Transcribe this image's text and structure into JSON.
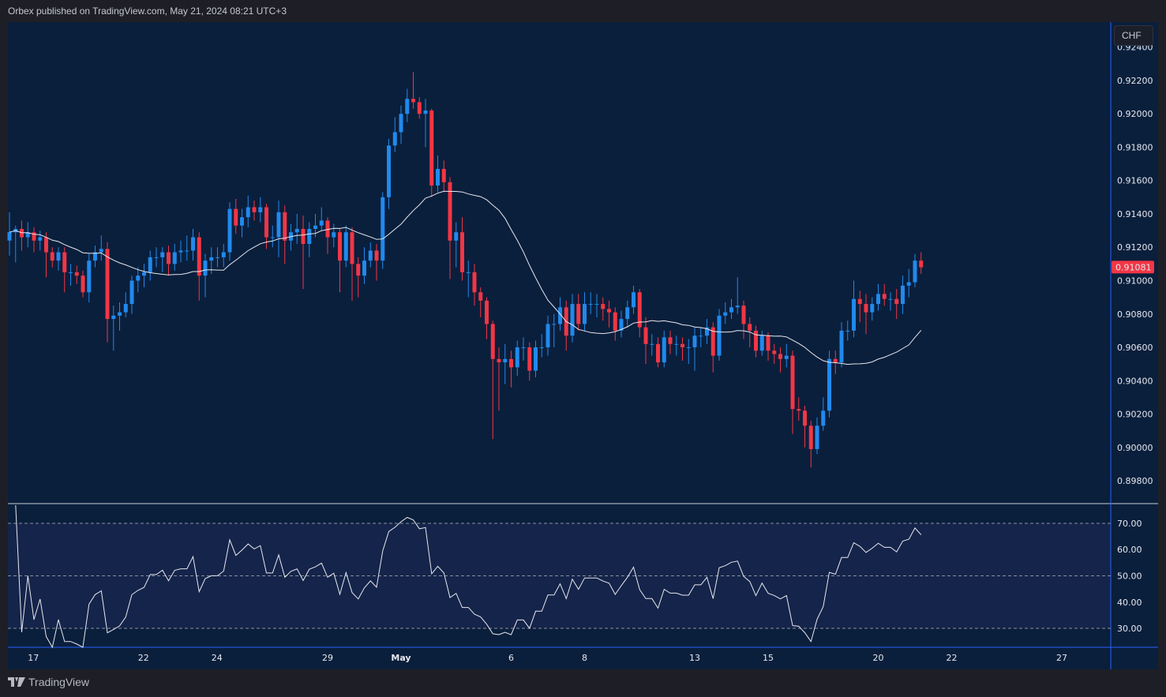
{
  "header": {
    "published": "Orbex published on TradingView.com, May 21, 2024 08:21 UTC+3"
  },
  "currency_button": "CHF",
  "footer": {
    "logo_text": "TradingView"
  },
  "colors": {
    "up": "#2189ec",
    "down": "#f23645",
    "ma": "#e6e8ee",
    "rsi": "#e6e8ee",
    "background": "#0a1f3c",
    "rsi_band": "#15244a",
    "last_price_bg": "#f23645"
  },
  "chart_data": [
    {
      "type": "candlestick",
      "symbol_quote": "CHF",
      "last_price_label": "0.91081",
      "ylim": [
        0.89663,
        0.9255
      ],
      "xlim_bars": [
        -0.26,
        180
      ],
      "yticks": [
        "0.92400",
        "0.92200",
        "0.92000",
        "0.91800",
        "0.91600",
        "0.91400",
        "0.91200",
        "0.91000",
        "0.90800",
        "0.90600",
        "0.90400",
        "0.90200",
        "0.90000",
        "0.89800"
      ],
      "xticks": [
        {
          "label": "17",
          "bar": 3.9
        },
        {
          "label": "22",
          "bar": 21.9
        },
        {
          "label": "24",
          "bar": 33.9
        },
        {
          "label": "29",
          "bar": 52
        },
        {
          "label": "May",
          "bar": 64
        },
        {
          "label": "6",
          "bar": 82
        },
        {
          "label": "8",
          "bar": 94
        },
        {
          "label": "13",
          "bar": 112
        },
        {
          "label": "15",
          "bar": 124
        },
        {
          "label": "20",
          "bar": 142
        },
        {
          "label": "22",
          "bar": 154
        },
        {
          "label": "27",
          "bar": 172
        }
      ],
      "moving_average_period": 20,
      "ohlc": [
        [
          0.9124,
          0.9141,
          0.9115,
          0.9129
        ],
        [
          0.9129,
          0.9133,
          0.9111,
          0.9131
        ],
        [
          0.9131,
          0.9136,
          0.9118,
          0.9126
        ],
        [
          0.9126,
          0.9135,
          0.912,
          0.9129
        ],
        [
          0.9129,
          0.9132,
          0.9117,
          0.9124
        ],
        [
          0.9124,
          0.913,
          0.9118,
          0.9126
        ],
        [
          0.9126,
          0.9129,
          0.9102,
          0.9117
        ],
        [
          0.9117,
          0.912,
          0.9108,
          0.9112
        ],
        [
          0.9112,
          0.912,
          0.9106,
          0.9117
        ],
        [
          0.9117,
          0.912,
          0.9093,
          0.9105
        ],
        [
          0.9105,
          0.911,
          0.9097,
          0.9105
        ],
        [
          0.9105,
          0.9109,
          0.9098,
          0.9103
        ],
        [
          0.9103,
          0.9106,
          0.909,
          0.9093
        ],
        [
          0.9093,
          0.9116,
          0.9087,
          0.9112
        ],
        [
          0.9112,
          0.9121,
          0.9108,
          0.9117
        ],
        [
          0.9117,
          0.9127,
          0.9112,
          0.9119
        ],
        [
          0.9119,
          0.9123,
          0.9063,
          0.9077
        ],
        [
          0.9077,
          0.9085,
          0.9058,
          0.9079
        ],
        [
          0.9079,
          0.9087,
          0.907,
          0.9081
        ],
        [
          0.9081,
          0.9093,
          0.9078,
          0.9086
        ],
        [
          0.9086,
          0.9103,
          0.908,
          0.91
        ],
        [
          0.91,
          0.9108,
          0.9093,
          0.9103
        ],
        [
          0.9103,
          0.911,
          0.9096,
          0.9105
        ],
        [
          0.9105,
          0.9118,
          0.91,
          0.9114
        ],
        [
          0.9114,
          0.912,
          0.9108,
          0.9114
        ],
        [
          0.9114,
          0.912,
          0.9105,
          0.9117
        ],
        [
          0.9117,
          0.9121,
          0.9103,
          0.911
        ],
        [
          0.911,
          0.9122,
          0.9106,
          0.9117
        ],
        [
          0.9117,
          0.9124,
          0.9111,
          0.9118
        ],
        [
          0.9118,
          0.9127,
          0.9112,
          0.9118
        ],
        [
          0.9118,
          0.9131,
          0.9112,
          0.9126
        ],
        [
          0.9126,
          0.9129,
          0.9088,
          0.9103
        ],
        [
          0.9103,
          0.9116,
          0.909,
          0.9112
        ],
        [
          0.9112,
          0.912,
          0.9104,
          0.9114
        ],
        [
          0.9114,
          0.912,
          0.9108,
          0.9114
        ],
        [
          0.9114,
          0.9122,
          0.9108,
          0.9117
        ],
        [
          0.9117,
          0.9147,
          0.9112,
          0.9143
        ],
        [
          0.9143,
          0.9149,
          0.9128,
          0.9133
        ],
        [
          0.9133,
          0.9143,
          0.9126,
          0.9138
        ],
        [
          0.9138,
          0.9151,
          0.9132,
          0.9144
        ],
        [
          0.9144,
          0.9148,
          0.9136,
          0.9141
        ],
        [
          0.9141,
          0.915,
          0.9135,
          0.9144
        ],
        [
          0.9144,
          0.9146,
          0.9119,
          0.9126
        ],
        [
          0.9126,
          0.9133,
          0.912,
          0.9126
        ],
        [
          0.9126,
          0.9148,
          0.9114,
          0.9141
        ],
        [
          0.9141,
          0.9145,
          0.911,
          0.9124
        ],
        [
          0.9124,
          0.9134,
          0.9118,
          0.9129
        ],
        [
          0.9129,
          0.914,
          0.9122,
          0.9131
        ],
        [
          0.9131,
          0.9139,
          0.9095,
          0.9122
        ],
        [
          0.9122,
          0.9135,
          0.9114,
          0.9131
        ],
        [
          0.9131,
          0.914,
          0.9126,
          0.9133
        ],
        [
          0.9133,
          0.9144,
          0.913,
          0.9136
        ],
        [
          0.9136,
          0.9138,
          0.9116,
          0.9126
        ],
        [
          0.9126,
          0.9134,
          0.912,
          0.9129
        ],
        [
          0.9129,
          0.9131,
          0.9093,
          0.9112
        ],
        [
          0.9112,
          0.9133,
          0.9108,
          0.9129
        ],
        [
          0.9129,
          0.9132,
          0.9088,
          0.911
        ],
        [
          0.911,
          0.9114,
          0.909,
          0.9103
        ],
        [
          0.9103,
          0.912,
          0.9098,
          0.9112
        ],
        [
          0.9112,
          0.9123,
          0.9108,
          0.9118
        ],
        [
          0.9118,
          0.9122,
          0.91,
          0.9112
        ],
        [
          0.9112,
          0.9153,
          0.9107,
          0.915
        ],
        [
          0.915,
          0.9185,
          0.9143,
          0.9181
        ],
        [
          0.9181,
          0.9198,
          0.9177,
          0.9189
        ],
        [
          0.9189,
          0.9205,
          0.9182,
          0.92
        ],
        [
          0.92,
          0.9215,
          0.9195,
          0.9209
        ],
        [
          0.9209,
          0.9225,
          0.9203,
          0.9207
        ],
        [
          0.9207,
          0.921,
          0.9197,
          0.92
        ],
        [
          0.92,
          0.9209,
          0.918,
          0.9202
        ],
        [
          0.9202,
          0.9203,
          0.915,
          0.9157
        ],
        [
          0.9157,
          0.9175,
          0.9153,
          0.9167
        ],
        [
          0.9167,
          0.9172,
          0.9153,
          0.9159
        ],
        [
          0.9159,
          0.9162,
          0.9101,
          0.9124
        ],
        [
          0.9124,
          0.9135,
          0.9108,
          0.9129
        ],
        [
          0.9129,
          0.9138,
          0.91,
          0.9105
        ],
        [
          0.9105,
          0.9112,
          0.909,
          0.9105
        ],
        [
          0.9105,
          0.911,
          0.9085,
          0.9093
        ],
        [
          0.9093,
          0.9096,
          0.9078,
          0.9088
        ],
        [
          0.9088,
          0.909,
          0.9065,
          0.9074
        ],
        [
          0.9074,
          0.9076,
          0.9005,
          0.9053
        ],
        [
          0.9053,
          0.906,
          0.9022,
          0.9051
        ],
        [
          0.9051,
          0.9062,
          0.9038,
          0.9053
        ],
        [
          0.9053,
          0.9058,
          0.9036,
          0.9048
        ],
        [
          0.9048,
          0.9064,
          0.9043,
          0.906
        ],
        [
          0.906,
          0.9066,
          0.9052,
          0.906
        ],
        [
          0.906,
          0.9063,
          0.904,
          0.9046
        ],
        [
          0.9046,
          0.9064,
          0.9042,
          0.906
        ],
        [
          0.906,
          0.9068,
          0.9054,
          0.906
        ],
        [
          0.906,
          0.9079,
          0.9055,
          0.9074
        ],
        [
          0.9074,
          0.908,
          0.906,
          0.9074
        ],
        [
          0.9074,
          0.909,
          0.907,
          0.9084
        ],
        [
          0.9084,
          0.9088,
          0.9058,
          0.9067
        ],
        [
          0.9067,
          0.9092,
          0.9063,
          0.9086
        ],
        [
          0.9086,
          0.9092,
          0.907,
          0.9074
        ],
        [
          0.9074,
          0.9093,
          0.907,
          0.9086
        ],
        [
          0.9086,
          0.9093,
          0.908,
          0.9086
        ],
        [
          0.9086,
          0.9092,
          0.9078,
          0.9086
        ],
        [
          0.9086,
          0.909,
          0.9076,
          0.9083
        ],
        [
          0.9083,
          0.9088,
          0.9072,
          0.9081
        ],
        [
          0.9081,
          0.9084,
          0.9064,
          0.907
        ],
        [
          0.907,
          0.9082,
          0.9066,
          0.9077
        ],
        [
          0.9077,
          0.9088,
          0.9072,
          0.9084
        ],
        [
          0.9084,
          0.9097,
          0.908,
          0.9093
        ],
        [
          0.9093,
          0.9095,
          0.9066,
          0.9072
        ],
        [
          0.9072,
          0.9078,
          0.905,
          0.9062
        ],
        [
          0.9062,
          0.9068,
          0.9055,
          0.9062
        ],
        [
          0.9062,
          0.9066,
          0.9048,
          0.9051
        ],
        [
          0.9051,
          0.907,
          0.9048,
          0.9066
        ],
        [
          0.9066,
          0.907,
          0.9056,
          0.9062
        ],
        [
          0.9062,
          0.9067,
          0.9055,
          0.9062
        ],
        [
          0.9062,
          0.9066,
          0.9052,
          0.906
        ],
        [
          0.906,
          0.9065,
          0.905,
          0.906
        ],
        [
          0.906,
          0.9072,
          0.9046,
          0.9067
        ],
        [
          0.9067,
          0.9072,
          0.906,
          0.9067
        ],
        [
          0.9067,
          0.9077,
          0.9062,
          0.9072
        ],
        [
          0.9072,
          0.9075,
          0.9045,
          0.9055
        ],
        [
          0.9055,
          0.9083,
          0.9052,
          0.9079
        ],
        [
          0.9079,
          0.9087,
          0.9074,
          0.9081
        ],
        [
          0.9081,
          0.9089,
          0.9077,
          0.9084
        ],
        [
          0.9084,
          0.9102,
          0.908,
          0.9085
        ],
        [
          0.9085,
          0.9088,
          0.9065,
          0.9074
        ],
        [
          0.9074,
          0.9078,
          0.906,
          0.907
        ],
        [
          0.907,
          0.9073,
          0.9054,
          0.9058
        ],
        [
          0.9058,
          0.907,
          0.9055,
          0.9067
        ],
        [
          0.9067,
          0.9069,
          0.9052,
          0.9058
        ],
        [
          0.9058,
          0.9062,
          0.905,
          0.9056
        ],
        [
          0.9056,
          0.906,
          0.9045,
          0.9053
        ],
        [
          0.9053,
          0.9062,
          0.9048,
          0.9055
        ],
        [
          0.9055,
          0.9058,
          0.9008,
          0.9023
        ],
        [
          0.9023,
          0.903,
          0.9016,
          0.9022
        ],
        [
          0.9022,
          0.9025,
          0.9,
          0.9013
        ],
        [
          0.9013,
          0.9016,
          0.8988,
          0.8999
        ],
        [
          0.8999,
          0.9018,
          0.8996,
          0.9013
        ],
        [
          0.9013,
          0.903,
          0.901,
          0.9022
        ],
        [
          0.9022,
          0.9058,
          0.9018,
          0.9053
        ],
        [
          0.9053,
          0.9058,
          0.9044,
          0.9051
        ],
        [
          0.9051,
          0.9075,
          0.9048,
          0.907
        ],
        [
          0.907,
          0.9076,
          0.9064,
          0.907
        ],
        [
          0.907,
          0.91,
          0.9066,
          0.9089
        ],
        [
          0.9089,
          0.9094,
          0.9075,
          0.9086
        ],
        [
          0.9086,
          0.9092,
          0.9068,
          0.9081
        ],
        [
          0.9081,
          0.909,
          0.9076,
          0.9086
        ],
        [
          0.9086,
          0.9098,
          0.9082,
          0.9092
        ],
        [
          0.9092,
          0.9098,
          0.9085,
          0.9089
        ],
        [
          0.9089,
          0.9093,
          0.9082,
          0.9089
        ],
        [
          0.9089,
          0.9095,
          0.9077,
          0.9086
        ],
        [
          0.9086,
          0.9103,
          0.908,
          0.9097
        ],
        [
          0.9097,
          0.9107,
          0.909,
          0.9099
        ],
        [
          0.9099,
          0.9116,
          0.9096,
          0.9112
        ],
        [
          0.9112,
          0.9117,
          0.9104,
          0.9108
        ]
      ]
    },
    {
      "type": "line",
      "indicator": "RSI",
      "period": 14,
      "ylim": [
        22.8,
        76.9
      ],
      "levels": [
        70,
        50,
        30
      ],
      "yticks": [
        "70.00",
        "60.00",
        "50.00",
        "40.00",
        "30.00"
      ]
    }
  ]
}
